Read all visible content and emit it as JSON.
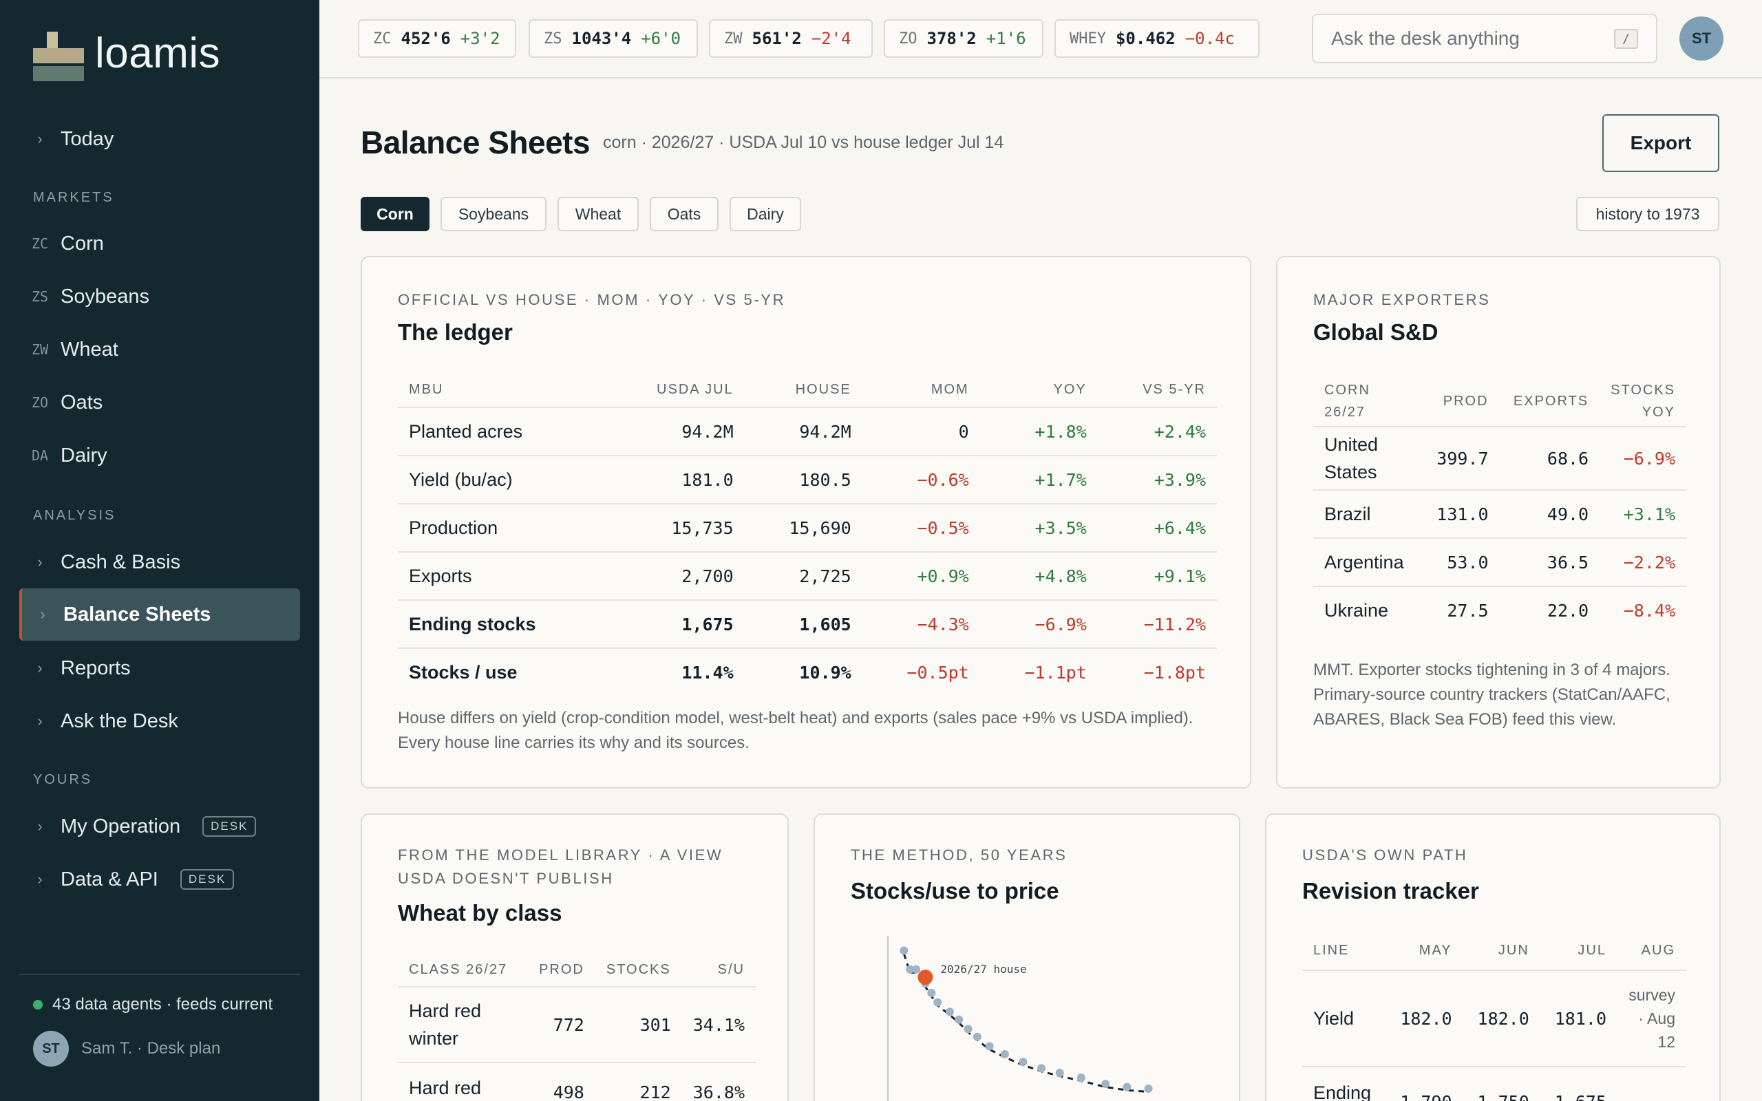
{
  "app": {
    "name": "loamis"
  },
  "sidebar": {
    "today": "Today",
    "sections": {
      "markets": "MARKETS",
      "analysis": "ANALYSIS",
      "yours": "YOURS"
    },
    "markets": [
      {
        "code": "ZC",
        "label": "Corn"
      },
      {
        "code": "ZS",
        "label": "Soybeans"
      },
      {
        "code": "ZW",
        "label": "Wheat"
      },
      {
        "code": "ZO",
        "label": "Oats"
      },
      {
        "code": "DA",
        "label": "Dairy"
      }
    ],
    "analysis": [
      {
        "label": "Cash & Basis"
      },
      {
        "label": "Balance Sheets",
        "active": true
      },
      {
        "label": "Reports"
      },
      {
        "label": "Ask the Desk"
      }
    ],
    "yours": [
      {
        "label": "My Operation",
        "badge": "DESK"
      },
      {
        "label": "Data & API",
        "badge": "DESK"
      }
    ],
    "status": "43 data agents · feeds current",
    "user": {
      "initials": "ST",
      "label": "Sam T. · Desk plan"
    }
  },
  "tickers": [
    {
      "sym": "ZC",
      "price": "452'6",
      "chg": "+3'2",
      "dir": "up"
    },
    {
      "sym": "ZS",
      "price": "1043'4",
      "chg": "+6'0",
      "dir": "up"
    },
    {
      "sym": "ZW",
      "price": "561'2",
      "chg": "−2'4",
      "dir": "down"
    },
    {
      "sym": "ZO",
      "price": "378'2",
      "chg": "+1'6",
      "dir": "up"
    },
    {
      "sym": "WHEY",
      "price": "$0.462",
      "chg": "−0.4c",
      "dir": "down"
    }
  ],
  "search": {
    "placeholder": "Ask the desk anything",
    "shortcut": "/"
  },
  "account": {
    "initials": "ST"
  },
  "header": {
    "title": "Balance Sheets",
    "subtitle": "corn · 2026/27 · USDA Jul 10 vs house ledger Jul 14",
    "export_label": "Export",
    "history_label": "history to 1973"
  },
  "tabs": [
    "Corn",
    "Soybeans",
    "Wheat",
    "Oats",
    "Dairy"
  ],
  "ledger": {
    "eyebrow": "OFFICIAL VS HOUSE · MOM · YOY · VS 5-YR",
    "title": "The ledger",
    "columns": [
      "MBU",
      "USDA JUL",
      "HOUSE",
      "MOM",
      "YOY",
      "VS 5-YR"
    ],
    "rows": [
      {
        "label": "Planted acres",
        "usda": "94.2M",
        "house": "94.2M",
        "mom": "0",
        "yoy": "+1.8%",
        "vs5": "+2.4%",
        "mom_dir": "flat",
        "yoy_dir": "up",
        "vs5_dir": "up",
        "bold": false
      },
      {
        "label": "Yield (bu/ac)",
        "usda": "181.0",
        "house": "180.5",
        "mom": "−0.6%",
        "yoy": "+1.7%",
        "vs5": "+3.9%",
        "mom_dir": "down",
        "yoy_dir": "up",
        "vs5_dir": "up",
        "bold": false
      },
      {
        "label": "Production",
        "usda": "15,735",
        "house": "15,690",
        "mom": "−0.5%",
        "yoy": "+3.5%",
        "vs5": "+6.4%",
        "mom_dir": "down",
        "yoy_dir": "up",
        "vs5_dir": "up",
        "bold": false
      },
      {
        "label": "Exports",
        "usda": "2,700",
        "house": "2,725",
        "mom": "+0.9%",
        "yoy": "+4.8%",
        "vs5": "+9.1%",
        "mom_dir": "up",
        "yoy_dir": "up",
        "vs5_dir": "up",
        "bold": false
      },
      {
        "label": "Ending stocks",
        "usda": "1,675",
        "house": "1,605",
        "mom": "−4.3%",
        "yoy": "−6.9%",
        "vs5": "−11.2%",
        "mom_dir": "down",
        "yoy_dir": "down",
        "vs5_dir": "down",
        "bold": true
      },
      {
        "label": "Stocks / use",
        "usda": "11.4%",
        "house": "10.9%",
        "mom": "−0.5pt",
        "yoy": "−1.1pt",
        "vs5": "−1.8pt",
        "mom_dir": "down",
        "yoy_dir": "down",
        "vs5_dir": "down",
        "bold": true
      }
    ],
    "note": "House differs on yield (crop-condition model, west-belt heat) and exports (sales pace +9% vs USDA implied). Every house line carries its why and its sources."
  },
  "exporters": {
    "eyebrow": "MAJOR EXPORTERS",
    "title": "Global S&D",
    "columns": [
      "CORN 26/27",
      "PROD",
      "EXPORTS",
      "STOCKS YOY"
    ],
    "rows": [
      {
        "country": "United States",
        "prod": "399.7",
        "exports": "68.6",
        "stocks": "−6.9%",
        "dir": "down"
      },
      {
        "country": "Brazil",
        "prod": "131.0",
        "exports": "49.0",
        "stocks": "+3.1%",
        "dir": "up"
      },
      {
        "country": "Argentina",
        "prod": "53.0",
        "exports": "36.5",
        "stocks": "−2.2%",
        "dir": "down"
      },
      {
        "country": "Ukraine",
        "prod": "27.5",
        "exports": "22.0",
        "stocks": "−8.4%",
        "dir": "down"
      }
    ],
    "note": "MMT. Exporter stocks tightening in 3 of 4 majors. Primary-source country trackers (StatCan/AAFC, ABARES, Black Sea FOB) feed this view."
  },
  "wheat": {
    "eyebrow": "FROM THE MODEL LIBRARY · A VIEW USDA DOESN'T PUBLISH",
    "title": "Wheat by class",
    "columns": [
      "CLASS 26/27",
      "PROD",
      "STOCKS",
      "S/U"
    ],
    "rows": [
      {
        "class": "Hard red winter",
        "prod": "772",
        "stocks": "301",
        "su": "34.1%"
      },
      {
        "class": "Hard red",
        "prod": "498",
        "stocks": "212",
        "su": "36.8%"
      }
    ]
  },
  "stocks_chart": {
    "eyebrow": "THE METHOD, 50 YEARS",
    "title": "Stocks/use to price",
    "annotation": "2026/27 house",
    "colors": {
      "history": "#9fb3c4",
      "house": "#e2582b",
      "curve": "#16222b"
    }
  },
  "chart_data": {
    "type": "scatter",
    "title": "Stocks/use to price",
    "xlabel": "",
    "ylabel": "",
    "series": [
      {
        "values": [
          [
            0.03,
            0.05
          ],
          [
            0.05,
            0.17
          ],
          [
            0.07,
            0.17
          ],
          [
            0.1,
            0.26
          ],
          [
            0.12,
            0.32
          ],
          [
            0.14,
            0.38
          ],
          [
            0.18,
            0.44
          ],
          [
            0.21,
            0.49
          ],
          [
            0.24,
            0.55
          ],
          [
            0.27,
            0.6
          ],
          [
            0.31,
            0.66
          ],
          [
            0.36,
            0.71
          ],
          [
            0.42,
            0.76
          ],
          [
            0.48,
            0.8
          ],
          [
            0.54,
            0.83
          ],
          [
            0.61,
            0.86
          ],
          [
            0.69,
            0.9
          ],
          [
            0.76,
            0.92
          ],
          [
            0.83,
            0.93
          ]
        ]
      },
      {
        "values": [
          [
            0.1,
            0.22
          ]
        ]
      }
    ]
  },
  "revisions": {
    "eyebrow": "USDA'S OWN PATH",
    "title": "Revision tracker",
    "columns": [
      "LINE",
      "MAY",
      "JUN",
      "JUL",
      "AUG"
    ],
    "rows": [
      {
        "line": "Yield",
        "may": "182.0",
        "jun": "182.0",
        "jul": "181.0",
        "aug": "survey · Aug 12"
      },
      {
        "line": "Ending",
        "may": "1,790",
        "jun": "1,750",
        "jul": "1,675",
        "aug": "·"
      }
    ]
  }
}
